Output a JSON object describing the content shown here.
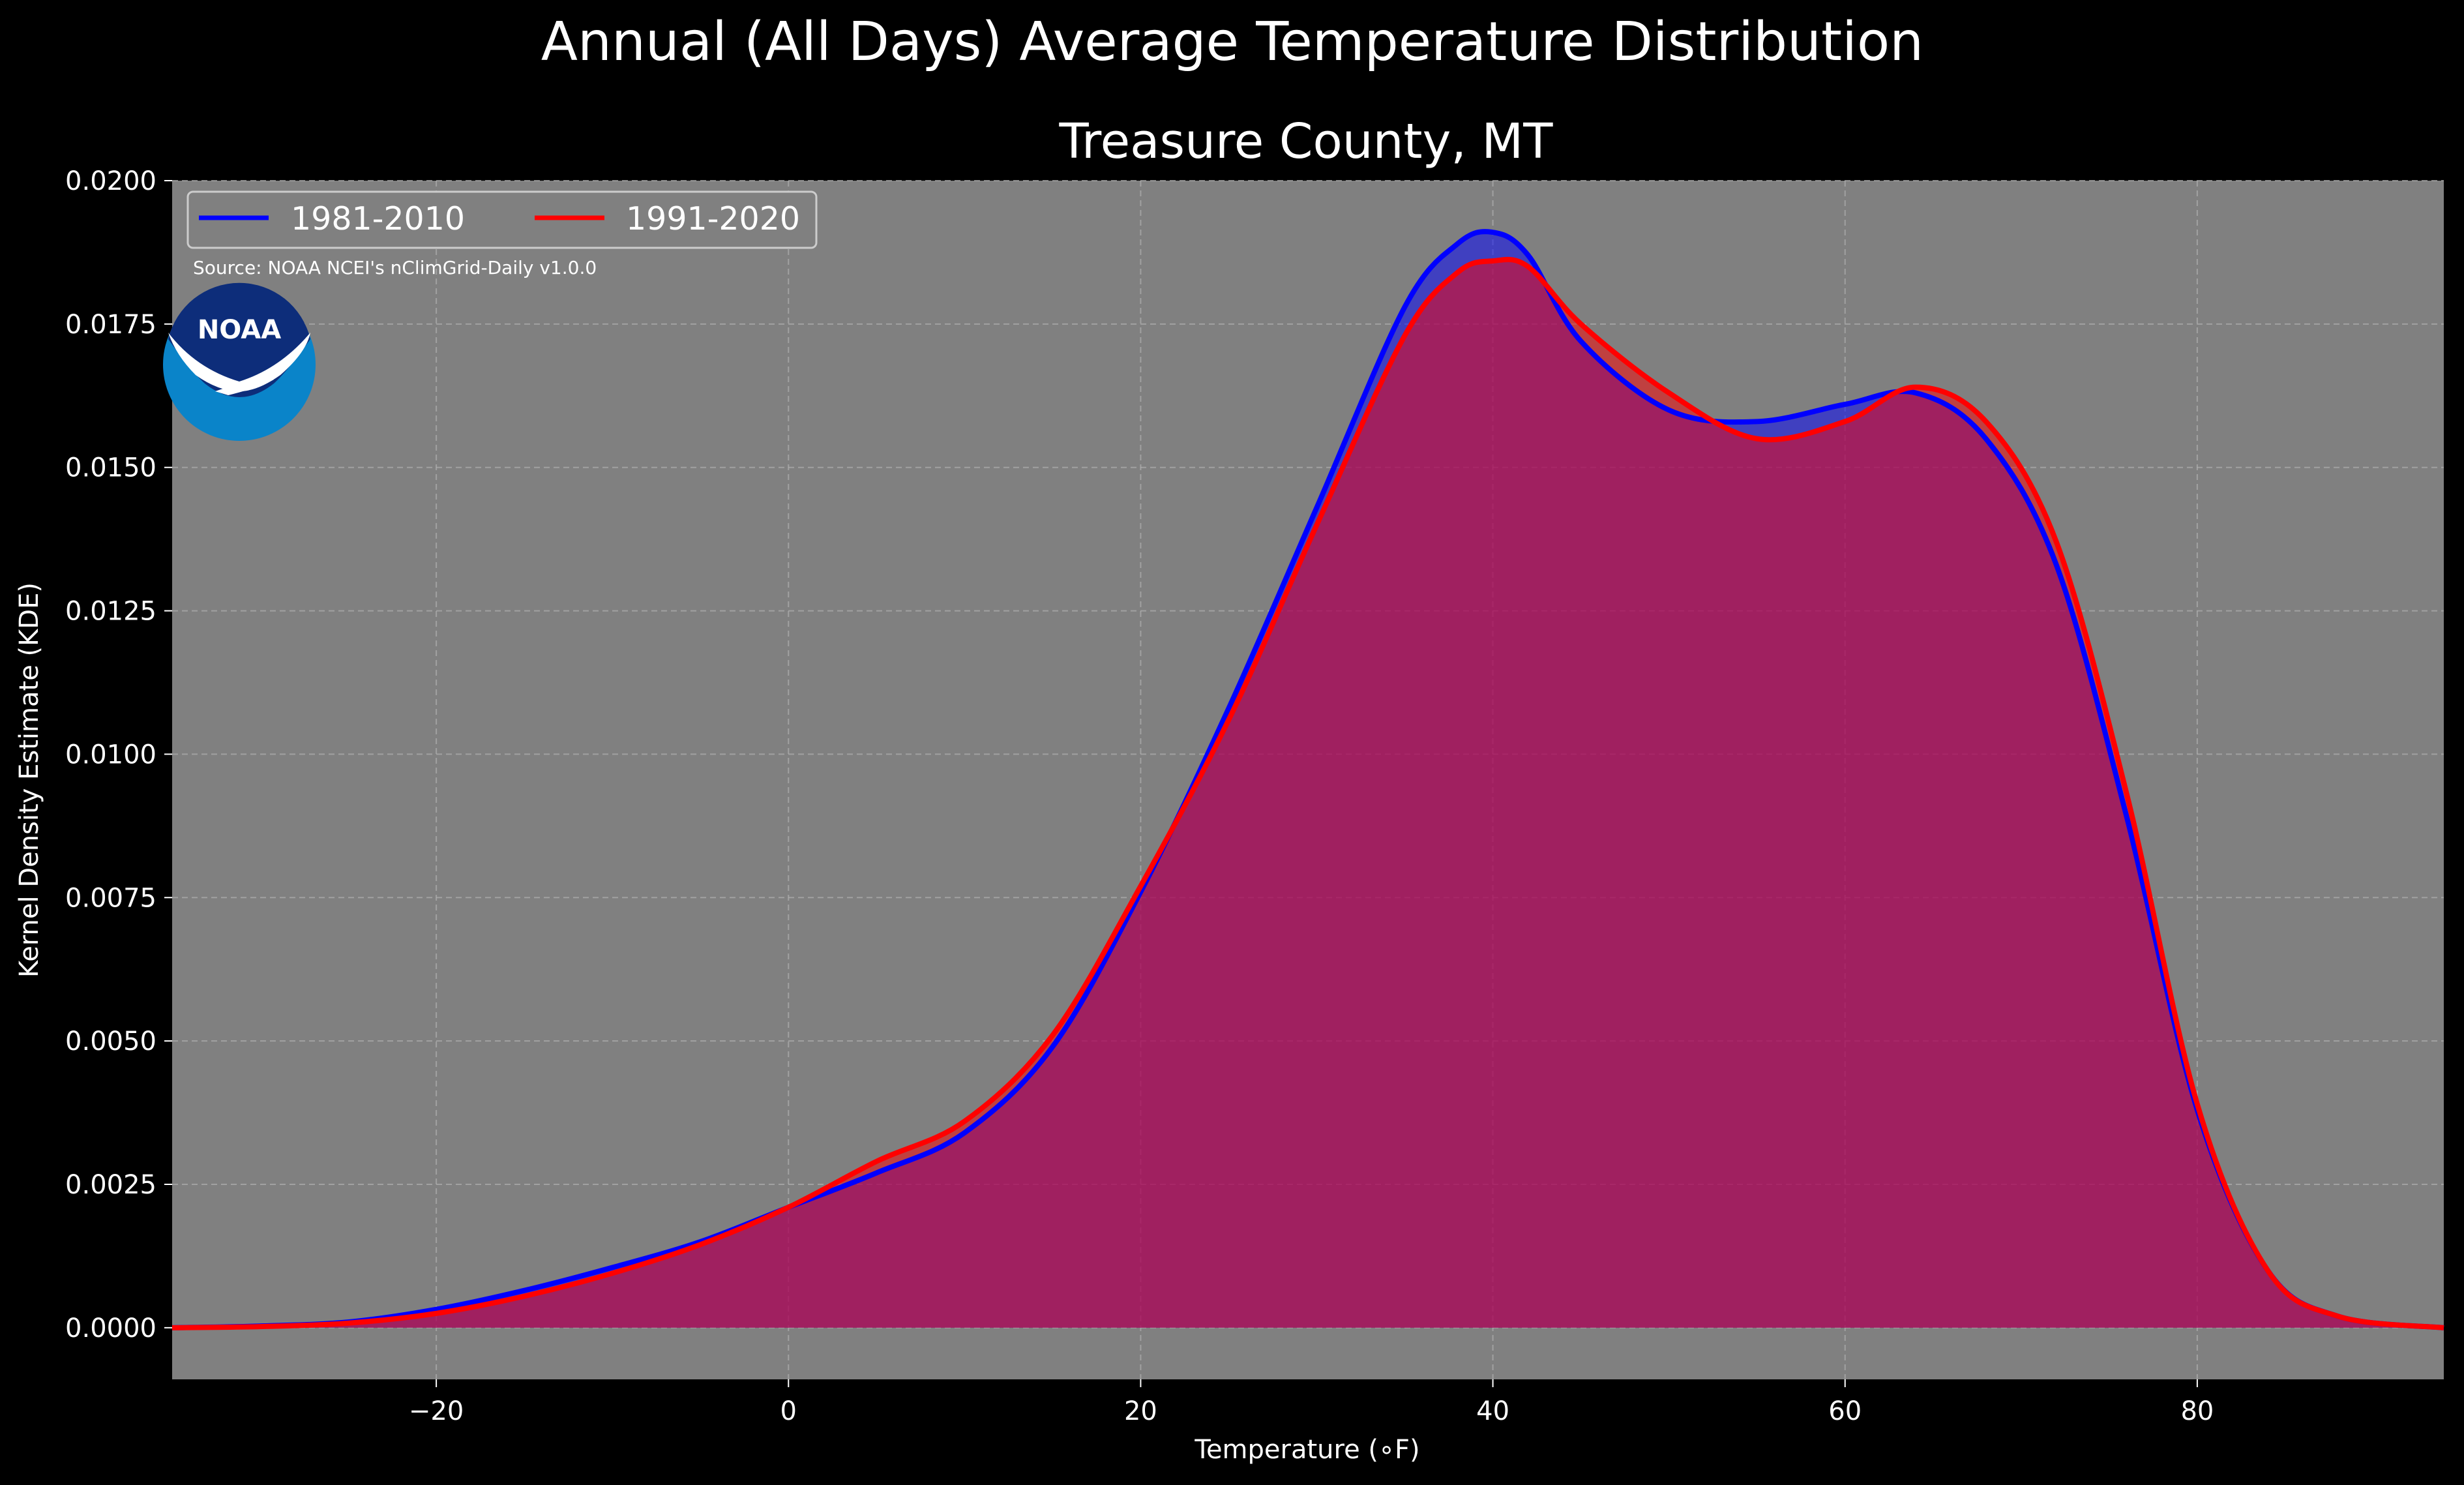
{
  "title": "Annual (All Days) Average Temperature Distribution",
  "subtitle": "Treasure County, MT",
  "source": "Source: NOAA NCEI's nClimGrid-Daily v1.0.0",
  "logo_text": "NOAA",
  "colors": {
    "background": "#000000",
    "plot_bg": "#808080",
    "series_1981": "#0000ff",
    "series_1991": "#ff0000",
    "logo_outer": "#0a84c9",
    "logo_inner": "#0d2d7a"
  },
  "chart_data": {
    "type": "area",
    "title": "Annual (All Days) Average Temperature Distribution",
    "subtitle": "Treasure County, MT",
    "xlabel": "Temperature (∘F)",
    "ylabel": "Kernel Density Estimate (KDE)",
    "xlim": [
      -35,
      94
    ],
    "ylim": [
      -0.0009,
      0.02
    ],
    "xticks": [
      -20,
      0,
      20,
      40,
      60,
      80
    ],
    "xtick_labels": [
      "−20",
      "0",
      "20",
      "40",
      "60",
      "80"
    ],
    "yticks": [
      0,
      0.0025,
      0.005,
      0.0075,
      0.01,
      0.0125,
      0.015,
      0.0175,
      0.02
    ],
    "ytick_labels": [
      "0.0000",
      "0.0025",
      "0.0050",
      "0.0075",
      "0.0100",
      "0.0125",
      "0.0150",
      "0.0175",
      "0.0200"
    ],
    "grid": true,
    "legend_position": "top-left",
    "series": [
      {
        "name": "1981-2010",
        "color": "#0000ff",
        "x": [
          -35,
          -30,
          -25,
          -20,
          -15,
          -10,
          -5,
          0,
          5,
          10,
          15,
          20,
          25,
          30,
          35,
          38,
          40,
          42,
          45,
          50,
          55,
          60,
          64,
          68,
          72,
          76,
          80,
          84,
          88,
          94
        ],
        "y": [
          0.0,
          3e-05,
          0.0001,
          0.00032,
          0.00065,
          0.00105,
          0.0015,
          0.0021,
          0.0027,
          0.0034,
          0.0049,
          0.0076,
          0.0108,
          0.0143,
          0.0178,
          0.0189,
          0.0191,
          0.0187,
          0.0172,
          0.016,
          0.0158,
          0.0161,
          0.0163,
          0.0155,
          0.0133,
          0.0089,
          0.0038,
          0.001,
          0.0002,
          0.0
        ]
      },
      {
        "name": "1991-2020",
        "color": "#ff0000",
        "x": [
          -35,
          -30,
          -25,
          -20,
          -15,
          -10,
          -5,
          0,
          5,
          10,
          15,
          20,
          25,
          30,
          35,
          38,
          40,
          42,
          45,
          50,
          55,
          60,
          64,
          68,
          72,
          76,
          80,
          84,
          88,
          94
        ],
        "y": [
          0.0,
          2e-05,
          8e-05,
          0.00025,
          0.00055,
          0.00095,
          0.00145,
          0.0021,
          0.0029,
          0.0036,
          0.0051,
          0.0077,
          0.0106,
          0.014,
          0.0173,
          0.0184,
          0.0186,
          0.0185,
          0.0175,
          0.0163,
          0.0155,
          0.0158,
          0.0164,
          0.0158,
          0.0137,
          0.0093,
          0.0039,
          0.001,
          0.0002,
          0.0
        ]
      }
    ]
  }
}
